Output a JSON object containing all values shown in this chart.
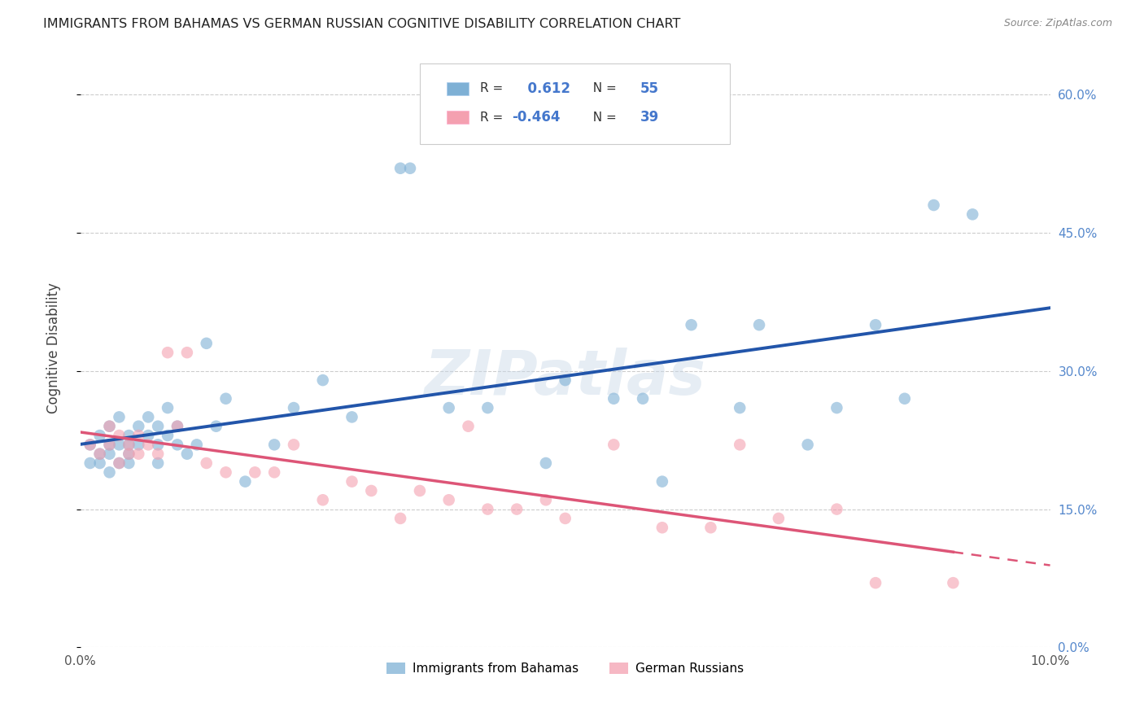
{
  "title": "IMMIGRANTS FROM BAHAMAS VS GERMAN RUSSIAN COGNITIVE DISABILITY CORRELATION CHART",
  "source": "Source: ZipAtlas.com",
  "ylabel": "Cognitive Disability",
  "legend1_label": "Immigrants from Bahamas",
  "legend2_label": "German Russians",
  "R1": 0.612,
  "N1": 55,
  "R2": -0.464,
  "N2": 39,
  "blue_color": "#7EB0D5",
  "pink_color": "#F4A0B0",
  "line_blue": "#2255AA",
  "line_pink": "#DD5577",
  "watermark": "ZIPatlas",
  "blue_x": [
    0.001,
    0.001,
    0.002,
    0.002,
    0.002,
    0.003,
    0.003,
    0.003,
    0.003,
    0.004,
    0.004,
    0.004,
    0.005,
    0.005,
    0.005,
    0.005,
    0.006,
    0.006,
    0.007,
    0.007,
    0.008,
    0.008,
    0.008,
    0.009,
    0.009,
    0.01,
    0.01,
    0.011,
    0.012,
    0.013,
    0.014,
    0.015,
    0.017,
    0.02,
    0.022,
    0.025,
    0.028,
    0.033,
    0.034,
    0.038,
    0.042,
    0.048,
    0.05,
    0.055,
    0.058,
    0.06,
    0.063,
    0.068,
    0.07,
    0.075,
    0.078,
    0.082,
    0.085,
    0.088,
    0.092
  ],
  "blue_y": [
    0.2,
    0.22,
    0.21,
    0.23,
    0.2,
    0.19,
    0.22,
    0.24,
    0.21,
    0.2,
    0.22,
    0.25,
    0.2,
    0.22,
    0.23,
    0.21,
    0.24,
    0.22,
    0.25,
    0.23,
    0.2,
    0.22,
    0.24,
    0.26,
    0.23,
    0.22,
    0.24,
    0.21,
    0.22,
    0.33,
    0.24,
    0.27,
    0.18,
    0.22,
    0.26,
    0.29,
    0.25,
    0.52,
    0.52,
    0.26,
    0.26,
    0.2,
    0.29,
    0.27,
    0.27,
    0.18,
    0.35,
    0.26,
    0.35,
    0.22,
    0.26,
    0.35,
    0.27,
    0.48,
    0.47
  ],
  "pink_x": [
    0.001,
    0.002,
    0.003,
    0.003,
    0.004,
    0.004,
    0.005,
    0.005,
    0.006,
    0.006,
    0.007,
    0.008,
    0.009,
    0.01,
    0.011,
    0.013,
    0.015,
    0.018,
    0.02,
    0.022,
    0.025,
    0.028,
    0.03,
    0.033,
    0.035,
    0.038,
    0.04,
    0.042,
    0.045,
    0.048,
    0.05,
    0.055,
    0.06,
    0.065,
    0.068,
    0.072,
    0.078,
    0.082,
    0.09
  ],
  "pink_y": [
    0.22,
    0.21,
    0.22,
    0.24,
    0.2,
    0.23,
    0.21,
    0.22,
    0.23,
    0.21,
    0.22,
    0.21,
    0.32,
    0.24,
    0.32,
    0.2,
    0.19,
    0.19,
    0.19,
    0.22,
    0.16,
    0.18,
    0.17,
    0.14,
    0.17,
    0.16,
    0.24,
    0.15,
    0.15,
    0.16,
    0.14,
    0.22,
    0.13,
    0.13,
    0.22,
    0.14,
    0.15,
    0.07,
    0.07
  ],
  "xlim": [
    0.0,
    0.1
  ],
  "ylim": [
    0.0,
    0.65
  ],
  "yticks": [
    0.0,
    0.15,
    0.3,
    0.45,
    0.6
  ],
  "ytick_labels": [
    "0.0%",
    "15.0%",
    "30.0%",
    "45.0%",
    "60.0%"
  ],
  "xticks": [
    0.0,
    0.02,
    0.04,
    0.06,
    0.08,
    0.1
  ],
  "xtick_labels": [
    "0.0%",
    "",
    "",
    "",
    "",
    "10.0%"
  ],
  "grid_color": "#CCCCCC",
  "bg_color": "#FFFFFF"
}
